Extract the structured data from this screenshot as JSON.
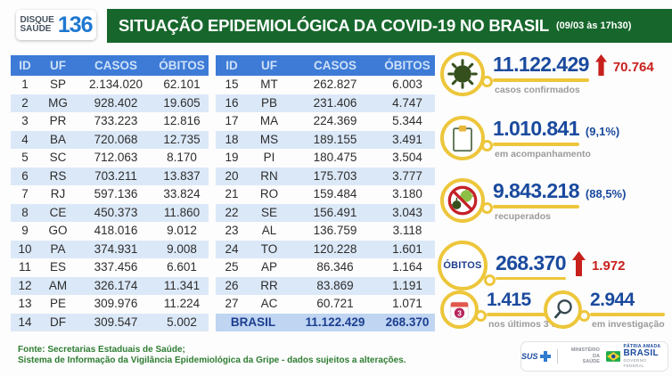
{
  "header": {
    "logo_line1": "DISQUE",
    "logo_line2": "SAÚDE",
    "logo_number": "136",
    "title": "SITUAÇÃO EPIDEMIOLÓGICA DA COVID-19 NO BRASIL",
    "timestamp": "(09/03 às 17h30)"
  },
  "tables": {
    "headers": [
      "ID",
      "UF",
      "CASOS",
      "ÓBITOS"
    ],
    "left": {
      "rows": [
        [
          "1",
          "SP",
          "2.134.020",
          "62.101"
        ],
        [
          "2",
          "MG",
          "928.402",
          "19.605"
        ],
        [
          "3",
          "PR",
          "733.223",
          "12.816"
        ],
        [
          "4",
          "BA",
          "720.068",
          "12.735"
        ],
        [
          "5",
          "SC",
          "712.063",
          "8.170"
        ],
        [
          "6",
          "RS",
          "703.211",
          "13.837"
        ],
        [
          "7",
          "RJ",
          "597.136",
          "33.824"
        ],
        [
          "8",
          "CE",
          "450.373",
          "11.860"
        ],
        [
          "9",
          "GO",
          "418.016",
          "9.012"
        ],
        [
          "10",
          "PA",
          "374.931",
          "9.008"
        ],
        [
          "11",
          "ES",
          "337.456",
          "6.601"
        ],
        [
          "12",
          "AM",
          "326.174",
          "11.341"
        ],
        [
          "13",
          "PE",
          "309.976",
          "11.224"
        ],
        [
          "14",
          "DF",
          "309.547",
          "5.002"
        ]
      ]
    },
    "right": {
      "rows": [
        [
          "15",
          "MT",
          "262.827",
          "6.003"
        ],
        [
          "16",
          "PB",
          "231.406",
          "4.747"
        ],
        [
          "17",
          "MA",
          "224.369",
          "5.344"
        ],
        [
          "18",
          "MS",
          "189.155",
          "3.491"
        ],
        [
          "19",
          "PI",
          "180.475",
          "3.504"
        ],
        [
          "20",
          "RN",
          "175.703",
          "3.777"
        ],
        [
          "21",
          "RO",
          "159.484",
          "3.180"
        ],
        [
          "22",
          "SE",
          "156.491",
          "3.043"
        ],
        [
          "23",
          "AL",
          "136.759",
          "3.118"
        ],
        [
          "24",
          "TO",
          "120.228",
          "1.601"
        ],
        [
          "25",
          "AP",
          "86.346",
          "1.164"
        ],
        [
          "26",
          "RR",
          "83.869",
          "1.191"
        ],
        [
          "27",
          "AC",
          "60.721",
          "1.071"
        ]
      ],
      "total": {
        "label": "BRASIL",
        "casos": "11.122.429",
        "obitos": "268.370"
      }
    }
  },
  "stats": {
    "confirmed": {
      "value": "11.122.429",
      "delta": "70.764",
      "label": "casos confirmados"
    },
    "monitoring": {
      "value": "1.010.841",
      "pct": "(9,1%)",
      "label": "em acompanhamento"
    },
    "recovered": {
      "value": "9.843.218",
      "pct": "(88,5%)",
      "label": "recuperados"
    },
    "deaths": {
      "ring_label": "ÓBITOS",
      "value": "268.370",
      "delta": "1.972"
    },
    "last_3_days": {
      "value": "1.415",
      "label": "nos últimos 3 dias",
      "icon_badge": "3"
    },
    "under_investigation": {
      "value": "2.944",
      "label": "em investigação"
    }
  },
  "footer": {
    "source_line1": "Fonte: Secretarias Estaduais de Saúde;",
    "source_line2": "Sistema de Informação da Vigilância Epidemiológica da Gripe - dados sujeitos a alterações.",
    "logos": {
      "sus": "SUS",
      "ministry_line1": "MINISTÉRIO DA",
      "ministry_line2": "SAÚDE",
      "brasil_top": "PÁTRIA AMADA",
      "brasil": "BRASIL",
      "brasil_sub": "GOVERNO FEDERAL"
    }
  },
  "colors": {
    "title_bar_green": "#17672c",
    "table_header_blue": "#3d7bd7",
    "row_stripe_blue": "#dbe8f7",
    "total_row_blue": "#bfd5f2",
    "number_navy": "#1a4a9e",
    "alert_red": "#c8201d",
    "accent_yellow": "#edc63b",
    "source_green": "#2e7d32",
    "virus_dark_green": "#354f1d",
    "virus_light_green": "#8cbf45"
  },
  "chart_data": {
    "type": "table",
    "title": "SITUAÇÃO EPIDEMIOLÓGICA DA COVID-19 NO BRASIL",
    "as_of": "09/03 às 17h30",
    "columns": [
      "ID",
      "UF",
      "CASOS",
      "ÓBITOS"
    ],
    "rows": [
      [
        1,
        "SP",
        2134020,
        62101
      ],
      [
        2,
        "MG",
        928402,
        19605
      ],
      [
        3,
        "PR",
        733223,
        12816
      ],
      [
        4,
        "BA",
        720068,
        12735
      ],
      [
        5,
        "SC",
        712063,
        8170
      ],
      [
        6,
        "RS",
        703211,
        13837
      ],
      [
        7,
        "RJ",
        597136,
        33824
      ],
      [
        8,
        "CE",
        450373,
        11860
      ],
      [
        9,
        "GO",
        418016,
        9012
      ],
      [
        10,
        "PA",
        374931,
        9008
      ],
      [
        11,
        "ES",
        337456,
        6601
      ],
      [
        12,
        "AM",
        326174,
        11341
      ],
      [
        13,
        "PE",
        309976,
        11224
      ],
      [
        14,
        "DF",
        309547,
        5002
      ],
      [
        15,
        "MT",
        262827,
        6003
      ],
      [
        16,
        "PB",
        231406,
        4747
      ],
      [
        17,
        "MA",
        224369,
        5344
      ],
      [
        18,
        "MS",
        189155,
        3491
      ],
      [
        19,
        "PI",
        180475,
        3504
      ],
      [
        20,
        "RN",
        175703,
        3777
      ],
      [
        21,
        "RO",
        159484,
        3180
      ],
      [
        22,
        "SE",
        156491,
        3043
      ],
      [
        23,
        "AL",
        136759,
        3118
      ],
      [
        24,
        "TO",
        120228,
        1601
      ],
      [
        25,
        "AP",
        86346,
        1164
      ],
      [
        26,
        "RR",
        83869,
        1191
      ],
      [
        27,
        "AC",
        60721,
        1071
      ]
    ],
    "total": {
      "uf": "BRASIL",
      "casos": 11122429,
      "obitos": 268370
    },
    "summary": {
      "casos_confirmados": 11122429,
      "novos_casos": 70764,
      "em_acompanhamento": 1010841,
      "em_acompanhamento_pct": "9,1%",
      "recuperados": 9843218,
      "recuperados_pct": "88,5%",
      "obitos": 268370,
      "novos_obitos": 1972,
      "obitos_ultimos_3_dias": 1415,
      "obitos_em_investigacao": 2944
    }
  }
}
